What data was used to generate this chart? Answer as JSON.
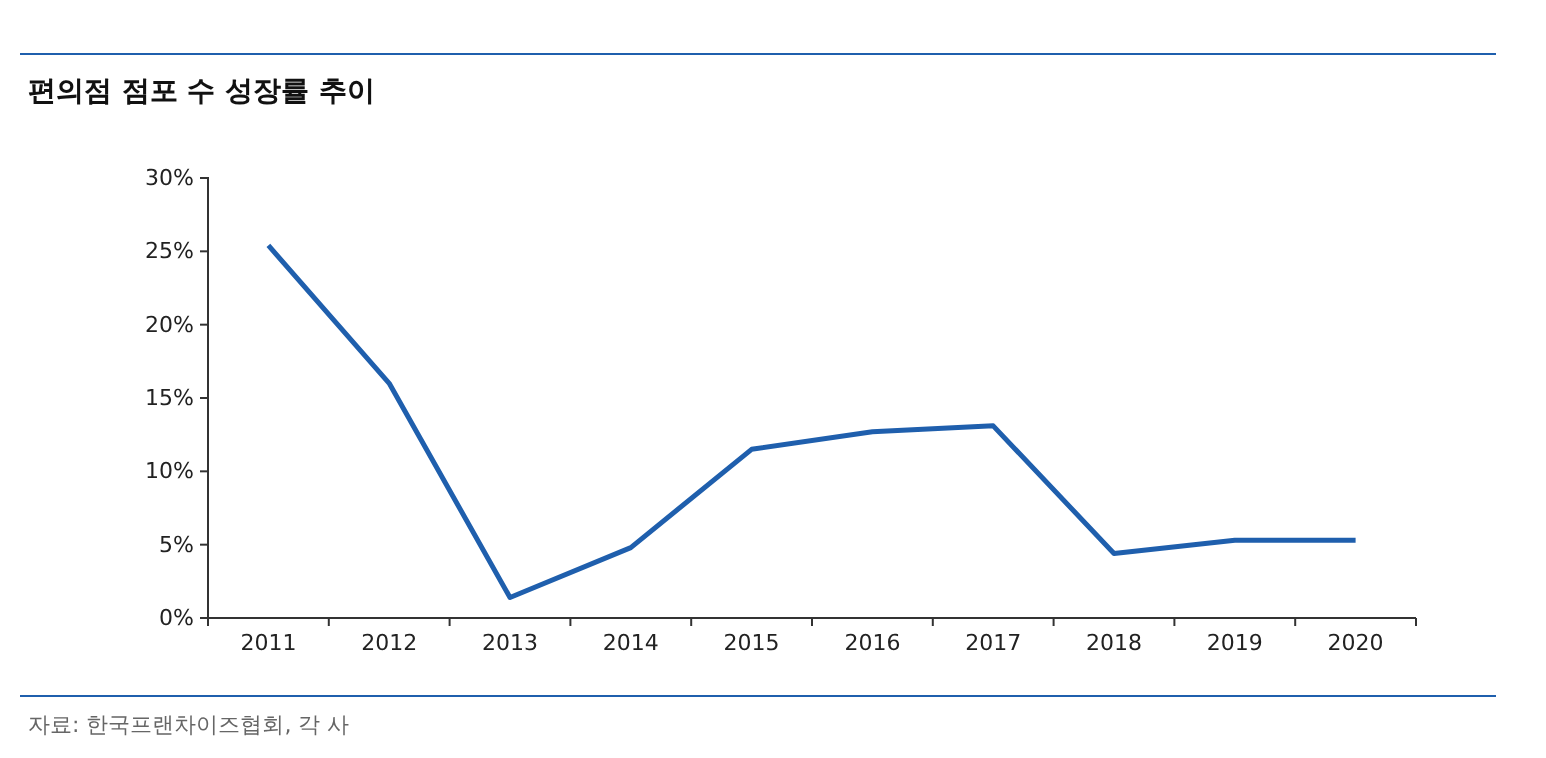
{
  "chart_data": {
    "type": "line",
    "title": "편의점 점포 수 성장률 추이",
    "categories": [
      "2011",
      "2012",
      "2013",
      "2014",
      "2015",
      "2016",
      "2017",
      "2018",
      "2019",
      "2020"
    ],
    "series": [
      {
        "color": "#1f5fad",
        "values": [
          25.4,
          16.0,
          1.4,
          4.8,
          11.5,
          12.7,
          13.1,
          4.4,
          5.3,
          5.3
        ]
      }
    ],
    "ylim": [
      0,
      30
    ],
    "yticks": [
      {
        "value": 0,
        "label": "0%"
      },
      {
        "value": 5,
        "label": "5%"
      },
      {
        "value": 10,
        "label": "10%"
      },
      {
        "value": 15,
        "label": "15%"
      },
      {
        "value": 20,
        "label": "20%"
      },
      {
        "value": 25,
        "label": "25%"
      },
      {
        "value": 30,
        "label": "30%"
      }
    ],
    "annotations": [
      "자료: 한국프랜차이즈협회, 각 사"
    ],
    "grid": false,
    "marker": "none",
    "line_style": "solid"
  }
}
